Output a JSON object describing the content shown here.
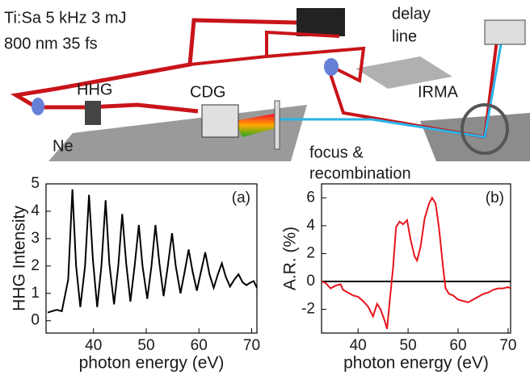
{
  "diagram": {
    "labels": [
      "Ti:Sa 5 kHz 3 mJ",
      "800 nm 35 fs",
      "delay",
      "line",
      "HHG",
      "CDG",
      "IRMA",
      "Ne",
      "focus &",
      "recombination"
    ]
  },
  "chart_data": [
    {
      "type": "line",
      "panel_label": "(a)",
      "x_label": "photon energy (eV)",
      "y_label": "HHG Intensity",
      "xlim": [
        31,
        71
      ],
      "ylim": [
        -0.45,
        5
      ],
      "xticks": [
        40,
        50,
        60,
        70
      ],
      "yticks": [
        0,
        1,
        2,
        3,
        4,
        5
      ],
      "series": [
        {
          "color": "#000000",
          "x": [
            31.3,
            33,
            34,
            35.2,
            36,
            36.7,
            37.5,
            38.4,
            39.15,
            39.9,
            40.7,
            41.5,
            42.3,
            43,
            43.9,
            44.7,
            45.45,
            46.2,
            47,
            47.8,
            48.6,
            49.3,
            50.2,
            51,
            51.75,
            52.5,
            53.3,
            54.1,
            54.9,
            55.6,
            56.5,
            57.3,
            58.05,
            58.8,
            59.6,
            60.4,
            61.2,
            62,
            62.8,
            63.6,
            64.35,
            65.1,
            65.9,
            66.7,
            67.5,
            68.3,
            69,
            69.8,
            70.4,
            71
          ],
          "values": [
            0.3,
            0.4,
            0.35,
            1.5,
            4.8,
            2.0,
            0.5,
            2.0,
            4.6,
            2.2,
            0.5,
            2.0,
            4.4,
            2.1,
            0.6,
            2.0,
            3.9,
            2.1,
            0.7,
            2.0,
            3.5,
            2.0,
            0.8,
            2.0,
            3.5,
            2.1,
            0.9,
            2.0,
            3.2,
            2.0,
            1.0,
            1.8,
            2.6,
            1.8,
            1.1,
            1.8,
            2.5,
            1.7,
            1.2,
            1.7,
            2.1,
            1.6,
            1.25,
            1.5,
            1.7,
            1.4,
            1.3,
            1.4,
            1.45,
            1.2
          ]
        }
      ]
    },
    {
      "type": "line",
      "panel_label": "(b)",
      "x_label": "photon energy (eV)",
      "y_label": "A.R. (%)",
      "xlim": [
        32.7,
        70.5
      ],
      "ylim": [
        -3.7,
        7
      ],
      "xticks": [
        40,
        50,
        60,
        70
      ],
      "yticks": [
        -2,
        0,
        2,
        4,
        6
      ],
      "hlines": [
        0
      ],
      "series": [
        {
          "color": "#e8141b",
          "x": [
            32.7,
            33.5,
            34.5,
            35.5,
            36.5,
            37,
            38,
            39,
            40,
            41,
            42,
            43,
            43.8,
            44.5,
            45.3,
            45.8,
            46.3,
            47,
            47.6,
            48.3,
            49,
            49.8,
            50.5,
            51.3,
            51.8,
            52.5,
            53.3,
            54.2,
            54.8,
            55.5,
            56.2,
            57,
            57.5,
            58.2,
            59,
            60,
            61,
            62,
            63,
            64,
            65,
            66,
            67,
            68,
            69,
            70,
            70.5
          ],
          "values": [
            0,
            -0.1,
            -0.5,
            -0.3,
            -0.2,
            -0.6,
            -0.8,
            -1.0,
            -1.1,
            -1.4,
            -1.8,
            -2.5,
            -1.6,
            -2.0,
            -2.8,
            -3.4,
            -1.5,
            1.0,
            3.9,
            4.3,
            4.1,
            4.4,
            3.0,
            1.8,
            1.5,
            2.5,
            4.5,
            5.6,
            6.0,
            5.6,
            3.8,
            1.0,
            -0.5,
            -0.9,
            -1.0,
            -1.3,
            -1.4,
            -1.5,
            -1.3,
            -1.1,
            -0.9,
            -0.8,
            -0.6,
            -0.5,
            -0.5,
            -0.4,
            -0.5
          ]
        }
      ]
    }
  ]
}
